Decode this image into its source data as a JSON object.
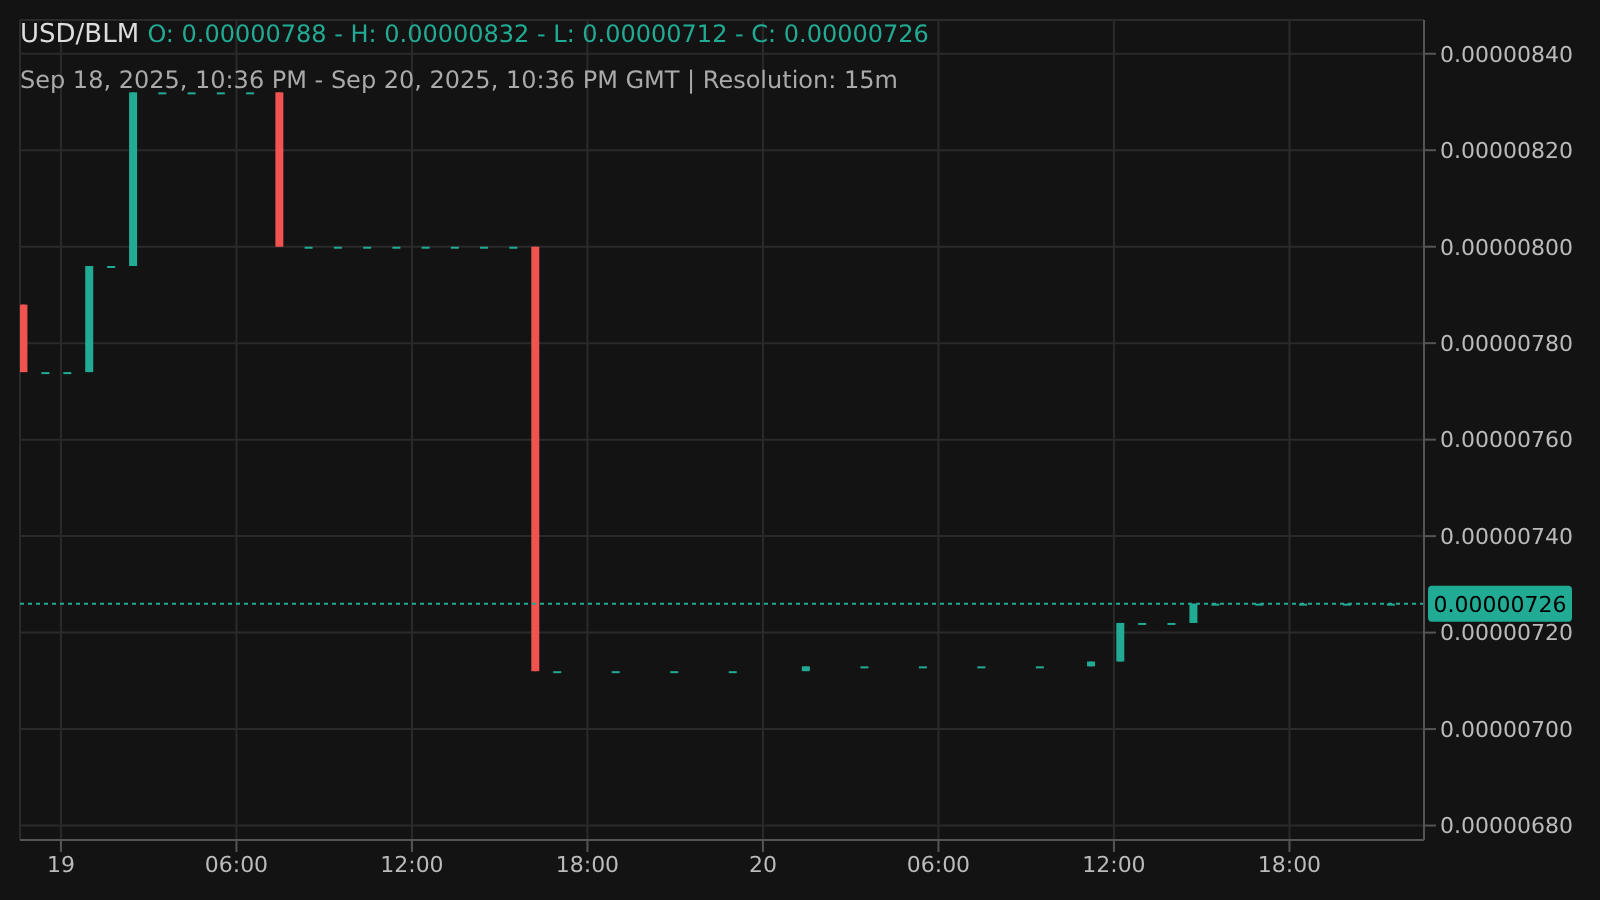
{
  "chart_data": {
    "type": "candlestick",
    "title": "USD/BLM",
    "subtitle": "O: 0.00000788 - H: 0.00000832 - L: 0.00000712 - C: 0.00000726",
    "annotations": [
      "Sep 18, 2025, 10:36 PM - Sep 20, 2025, 10:36 PM GMT   |   Resolution: 15m"
    ],
    "x": [
      "2025-09-18T22:45",
      "2025-09-18T23:30",
      "2025-09-19T00:15",
      "2025-09-19T01:00",
      "2025-09-19T01:45",
      "2025-09-19T02:30",
      "2025-09-19T03:30",
      "2025-09-19T04:30",
      "2025-09-19T05:30",
      "2025-09-19T06:30",
      "2025-09-19T07:30",
      "2025-09-19T08:30",
      "2025-09-19T09:30",
      "2025-09-19T10:30",
      "2025-09-19T11:30",
      "2025-09-19T12:30",
      "2025-09-19T13:30",
      "2025-09-19T14:30",
      "2025-09-19T15:30",
      "2025-09-19T16:15",
      "2025-09-19T17:00",
      "2025-09-19T19:00",
      "2025-09-19T21:00",
      "2025-09-19T23:00",
      "2025-09-20T01:30",
      "2025-09-20T03:30",
      "2025-09-20T05:30",
      "2025-09-20T07:30",
      "2025-09-20T09:30",
      "2025-09-20T11:15",
      "2025-09-20T12:15",
      "2025-09-20T13:00",
      "2025-09-20T14:00",
      "2025-09-20T14:45",
      "2025-09-20T15:30",
      "2025-09-20T17:00",
      "2025-09-20T18:30",
      "2025-09-20T20:00",
      "2025-09-20T21:30"
    ],
    "ohlc": [
      [
        7.88e-06,
        7.88e-06,
        7.74e-06,
        7.74e-06
      ],
      [
        7.74e-06,
        7.74e-06,
        7.74e-06,
        7.74e-06
      ],
      [
        7.74e-06,
        7.74e-06,
        7.74e-06,
        7.74e-06
      ],
      [
        7.74e-06,
        7.96e-06,
        7.74e-06,
        7.96e-06
      ],
      [
        7.96e-06,
        7.96e-06,
        7.96e-06,
        7.96e-06
      ],
      [
        7.96e-06,
        8.32e-06,
        7.96e-06,
        8.32e-06
      ],
      [
        8.32e-06,
        8.32e-06,
        8.32e-06,
        8.32e-06
      ],
      [
        8.32e-06,
        8.32e-06,
        8.32e-06,
        8.32e-06
      ],
      [
        8.32e-06,
        8.32e-06,
        8.32e-06,
        8.32e-06
      ],
      [
        8.32e-06,
        8.32e-06,
        8.32e-06,
        8.32e-06
      ],
      [
        8.32e-06,
        8.32e-06,
        8e-06,
        8e-06
      ],
      [
        8e-06,
        8e-06,
        8e-06,
        8e-06
      ],
      [
        8e-06,
        8e-06,
        8e-06,
        8e-06
      ],
      [
        8e-06,
        8e-06,
        8e-06,
        8e-06
      ],
      [
        8e-06,
        8e-06,
        8e-06,
        8e-06
      ],
      [
        8e-06,
        8e-06,
        8e-06,
        8e-06
      ],
      [
        8e-06,
        8e-06,
        8e-06,
        8e-06
      ],
      [
        8e-06,
        8e-06,
        8e-06,
        8e-06
      ],
      [
        8e-06,
        8e-06,
        8e-06,
        8e-06
      ],
      [
        8e-06,
        8e-06,
        7.12e-06,
        7.12e-06
      ],
      [
        7.12e-06,
        7.12e-06,
        7.12e-06,
        7.12e-06
      ],
      [
        7.12e-06,
        7.12e-06,
        7.12e-06,
        7.12e-06
      ],
      [
        7.12e-06,
        7.12e-06,
        7.12e-06,
        7.12e-06
      ],
      [
        7.12e-06,
        7.12e-06,
        7.12e-06,
        7.12e-06
      ],
      [
        7.12e-06,
        7.13e-06,
        7.12e-06,
        7.13e-06
      ],
      [
        7.13e-06,
        7.13e-06,
        7.13e-06,
        7.13e-06
      ],
      [
        7.13e-06,
        7.13e-06,
        7.13e-06,
        7.13e-06
      ],
      [
        7.13e-06,
        7.13e-06,
        7.13e-06,
        7.13e-06
      ],
      [
        7.13e-06,
        7.13e-06,
        7.13e-06,
        7.13e-06
      ],
      [
        7.13e-06,
        7.14e-06,
        7.13e-06,
        7.14e-06
      ],
      [
        7.14e-06,
        7.22e-06,
        7.14e-06,
        7.22e-06
      ],
      [
        7.22e-06,
        7.22e-06,
        7.22e-06,
        7.22e-06
      ],
      [
        7.22e-06,
        7.22e-06,
        7.22e-06,
        7.22e-06
      ],
      [
        7.22e-06,
        7.26e-06,
        7.22e-06,
        7.26e-06
      ],
      [
        7.26e-06,
        7.26e-06,
        7.26e-06,
        7.26e-06
      ],
      [
        7.26e-06,
        7.26e-06,
        7.26e-06,
        7.26e-06
      ],
      [
        7.26e-06,
        7.26e-06,
        7.26e-06,
        7.26e-06
      ],
      [
        7.26e-06,
        7.26e-06,
        7.26e-06,
        7.26e-06
      ],
      [
        7.26e-06,
        7.26e-06,
        7.26e-06,
        7.26e-06
      ]
    ],
    "colors": [
      "#f05350",
      "#22ab94",
      "#22ab94",
      "#22ab94",
      "#22ab94",
      "#22ab94",
      "#22ab94",
      "#22ab94",
      "#22ab94",
      "#22ab94",
      "#f05350",
      "#22ab94",
      "#22ab94",
      "#22ab94",
      "#22ab94",
      "#22ab94",
      "#22ab94",
      "#22ab94",
      "#22ab94",
      "#f05350",
      "#22ab94",
      "#22ab94",
      "#22ab94",
      "#22ab94",
      "#22ab94",
      "#22ab94",
      "#22ab94",
      "#22ab94",
      "#22ab94",
      "#22ab94",
      "#22ab94",
      "#22ab94",
      "#22ab94",
      "#22ab94",
      "#22ab94",
      "#22ab94",
      "#22ab94",
      "#22ab94",
      "#22ab94"
    ],
    "xlim": [
      "2025-09-18T22:36",
      "2025-09-20T22:36"
    ],
    "xticks": [
      {
        "value": "2025-09-19T00:00",
        "label": "19"
      },
      {
        "value": "2025-09-19T06:00",
        "label": "06:00"
      },
      {
        "value": "2025-09-19T12:00",
        "label": "12:00"
      },
      {
        "value": "2025-09-19T18:00",
        "label": "18:00"
      },
      {
        "value": "2025-09-20T00:00",
        "label": "20"
      },
      {
        "value": "2025-09-20T06:00",
        "label": "06:00"
      },
      {
        "value": "2025-09-20T12:00",
        "label": "12:00"
      },
      {
        "value": "2025-09-20T18:00",
        "label": "18:00"
      }
    ],
    "ylim": [
      6.77e-06,
      8.47e-06
    ],
    "yticks": [
      {
        "value": 6.8e-06,
        "label": "0.00000680"
      },
      {
        "value": 7e-06,
        "label": "0.00000700"
      },
      {
        "value": 7.2e-06,
        "label": "0.00000720"
      },
      {
        "value": 7.4e-06,
        "label": "0.00000740"
      },
      {
        "value": 7.6e-06,
        "label": "0.00000760"
      },
      {
        "value": 7.8e-06,
        "label": "0.00000780"
      },
      {
        "value": 8e-06,
        "label": "0.00000800"
      },
      {
        "value": 8.2e-06,
        "label": "0.00000820"
      },
      {
        "value": 8.4e-06,
        "label": "0.00000840"
      }
    ],
    "ref_lines": [
      {
        "axis": "y",
        "value": 7.26e-06,
        "label": "0.00000726",
        "color": "#22ab94",
        "line_style": "dotted"
      }
    ],
    "grid": true
  }
}
